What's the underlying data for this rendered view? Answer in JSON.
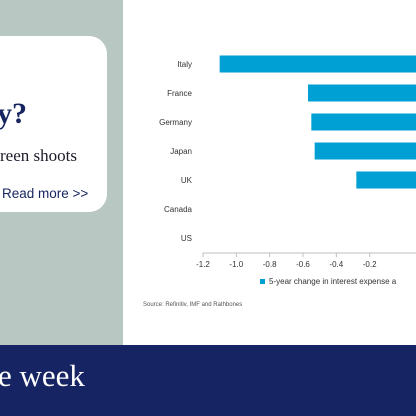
{
  "promo": {
    "title": "y?",
    "subtitle": "reen shoots",
    "link_label": "Read more >>"
  },
  "footer": {
    "title": "e week"
  },
  "colors": {
    "bar": "#009fd4",
    "panel": "#b9c7c2",
    "navy": "#172463"
  },
  "chart_data": {
    "type": "bar",
    "orientation": "horizontal",
    "categories": [
      "Italy",
      "France",
      "Germany",
      "Japan",
      "UK",
      "Canada",
      "US"
    ],
    "values": [
      -1.1,
      -0.57,
      -0.55,
      -0.53,
      -0.28,
      0,
      0
    ],
    "xticks": [
      "-1.2",
      "-1.0",
      "-0.8",
      "-0.6",
      "-0.4",
      "-0.2"
    ],
    "xtick_values": [
      -1.2,
      -1.0,
      -0.8,
      -0.6,
      -0.4,
      -0.2
    ],
    "xlim": [
      -1.2,
      0
    ],
    "legend_label": "5-year change in interest expense a",
    "legend_position": "bottom",
    "source": "Source: Refinitiv, IMF and Rathbones",
    "grid": false
  }
}
